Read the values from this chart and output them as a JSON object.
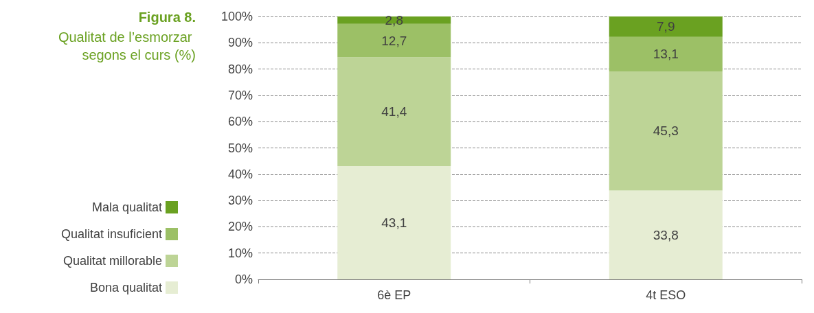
{
  "chart_data": {
    "type": "bar",
    "stacked": true,
    "title": "Figura 8.",
    "subtitle": "Qualitat de l’esmorzar segons el curs (%)",
    "categories": [
      "6è EP",
      "4t ESO"
    ],
    "series": [
      {
        "name": "Bona qualitat",
        "color": "#e6edd3",
        "values": [
          43.1,
          33.8
        ],
        "value_labels": [
          "43,1",
          "33,8"
        ]
      },
      {
        "name": "Qualitat millorable",
        "color": "#bdd496",
        "values": [
          41.4,
          45.3
        ],
        "value_labels": [
          "41,4",
          "45,3"
        ]
      },
      {
        "name": "Qualitat insuficient",
        "color": "#9cc066",
        "values": [
          12.7,
          13.1
        ],
        "value_labels": [
          "12,7",
          "13,1"
        ]
      },
      {
        "name": "Mala qualitat",
        "color": "#6aa121",
        "values": [
          2.8,
          7.9
        ],
        "value_labels": [
          "2,8",
          "7,9"
        ]
      }
    ],
    "ylim": [
      0,
      100
    ],
    "yticks": [
      {
        "value": 0,
        "label": "0%"
      },
      {
        "value": 10,
        "label": "10%"
      },
      {
        "value": 20,
        "label": "20%"
      },
      {
        "value": 30,
        "label": "30%"
      },
      {
        "value": 40,
        "label": "40%"
      },
      {
        "value": 50,
        "label": "50%"
      },
      {
        "value": 60,
        "label": "60%"
      },
      {
        "value": 70,
        "label": "70%"
      },
      {
        "value": 80,
        "label": "80%"
      },
      {
        "value": 90,
        "label": "90%"
      },
      {
        "value": 100,
        "label": "100%"
      }
    ],
    "grid": "y",
    "legend": "left"
  }
}
